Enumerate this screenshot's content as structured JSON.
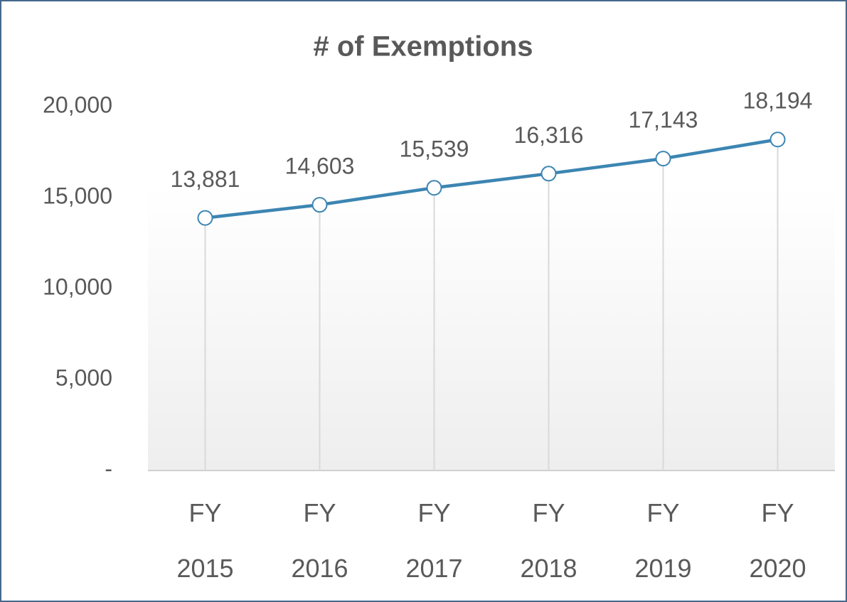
{
  "chart_data": {
    "type": "line",
    "title": "# of Exemptions",
    "categories": [
      "FY 2015",
      "FY 2016",
      "FY 2017",
      "FY 2018",
      "FY 2019",
      "FY 2020"
    ],
    "values": [
      13881,
      14603,
      15539,
      16316,
      17143,
      18194
    ],
    "value_labels": [
      "13,881",
      "14,603",
      "15,539",
      "16,316",
      "17,143",
      "18,194"
    ],
    "color": "#3c85b2",
    "ylim": [
      0,
      20000
    ],
    "yticks": [
      {
        "value": 0,
        "label": "-"
      },
      {
        "value": 5000,
        "label": "5,000"
      },
      {
        "value": 10000,
        "label": "10,000"
      },
      {
        "value": 15000,
        "label": "15,000"
      },
      {
        "value": 20000,
        "label": "20,000"
      }
    ]
  }
}
